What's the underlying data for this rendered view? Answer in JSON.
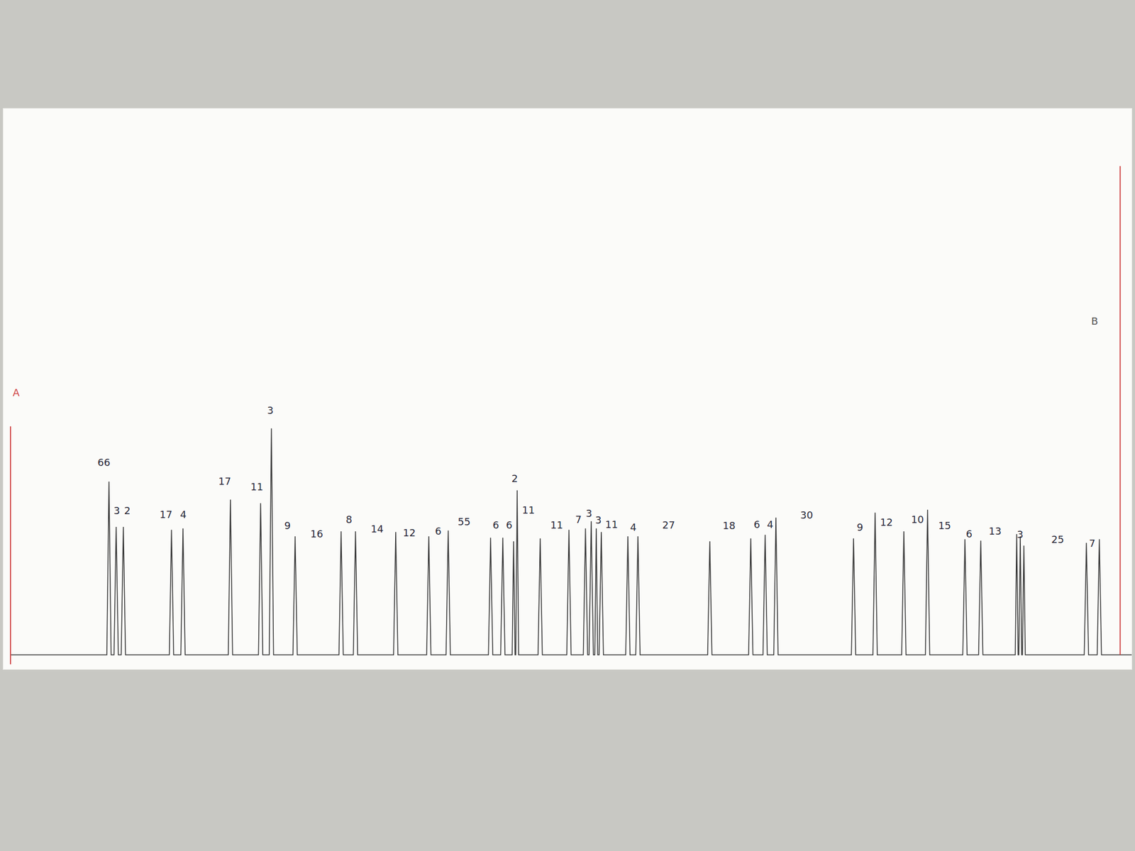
{
  "chart_data": {
    "type": "line",
    "color": "#3a3a3a",
    "x": [
      1.0,
      14.4,
      14.7,
      15.0,
      15.4,
      15.7,
      16.0,
      16.4,
      16.7,
      17.0,
      23.1,
      23.4,
      23.7,
      24.7,
      25.0,
      25.3,
      31.3,
      31.6,
      31.9,
      35.5,
      35.8,
      36.1,
      37.0,
      37.3,
      37.6,
      40.3,
      40.6,
      40.9,
      46.7,
      47.0,
      47.3,
      48.7,
      49.0,
      49.3,
      54.3,
      54.6,
      54.9,
      58.9,
      59.2,
      59.5,
      61.6,
      61.9,
      62.2,
      67.5,
      67.8,
      68.1,
      69.2,
      69.5,
      69.8,
      70.8,
      71.0,
      71.2,
      71.3,
      71.5,
      71.7,
      74.4,
      74.7,
      75.0,
      78.4,
      78.7,
      79.0,
      80.7,
      81.0,
      81.3,
      81.5,
      81.8,
      82.1,
      82.3,
      82.5,
      82.7,
      82.9,
      83.2,
      83.5,
      86.6,
      86.9,
      87.2,
      88.0,
      88.3,
      88.6,
      98.0,
      98.3,
      98.6,
      103.7,
      104.0,
      104.3,
      105.7,
      106.0,
      106.3,
      107.2,
      107.5,
      107.8,
      118.0,
      118.3,
      118.6,
      121.0,
      121.3,
      121.6,
      125.0,
      125.3,
      125.6,
      128.3,
      128.6,
      128.9,
      133.5,
      133.8,
      134.1,
      135.7,
      136.0,
      136.3,
      140.8,
      141.0,
      141.2,
      141.3,
      141.5,
      141.7,
      141.8,
      142.0,
      142.2,
      150.4,
      150.7,
      151.0,
      152.2,
      152.5,
      152.8,
      157.0
    ],
    "values": [
      0,
      0,
      24.1,
      0,
      0,
      17.8,
      0,
      0,
      17.8,
      0,
      0,
      17.4,
      0,
      0,
      17.6,
      0,
      0,
      21.6,
      0,
      0,
      21.1,
      0,
      0,
      31.5,
      0,
      0,
      16.5,
      0,
      0,
      17.2,
      0,
      0,
      17.2,
      0,
      0,
      17.1,
      0,
      0,
      16.5,
      0,
      0,
      17.3,
      0,
      0,
      16.3,
      0,
      0,
      16.3,
      0,
      0,
      15.8,
      0,
      0,
      22.9,
      0,
      0,
      16.2,
      0,
      0,
      17.4,
      0,
      0,
      17.6,
      0,
      0,
      18.6,
      0,
      0,
      17.6,
      0,
      0,
      17.1,
      0,
      0,
      16.5,
      0,
      0,
      16.5,
      0,
      0,
      15.8,
      0,
      0,
      16.2,
      0,
      0,
      16.7,
      0,
      0,
      19.1,
      0,
      0,
      16.2,
      0,
      0,
      19.8,
      0,
      0,
      17.2,
      0,
      0,
      20.2,
      0,
      0,
      16.1,
      0,
      0,
      15.9,
      0,
      0,
      16.8,
      0,
      0,
      16.5,
      0,
      0,
      15.2,
      0,
      0,
      15.6,
      0,
      0,
      16.1,
      0,
      0
    ],
    "xlim": [
      0,
      157
    ],
    "ylim": [
      -2,
      76
    ],
    "xticks": [],
    "yticks": [],
    "grid": false,
    "tick_labels": false,
    "boundaries": [
      {
        "x": 1.0,
        "y": [
          -1.3,
          31.8
        ],
        "color": "#d04848"
      },
      {
        "x": 155.4,
        "y": [
          0,
          68
        ],
        "color": "#d04848"
      }
    ],
    "annotations": [
      {
        "text": "A",
        "x": 1.8,
        "y": 35.5,
        "color": "#d04848"
      },
      {
        "text": "B",
        "x": 151.8,
        "y": 45.5,
        "color": "#555555"
      },
      {
        "text": "66",
        "x": 14.0,
        "y": 25.8
      },
      {
        "text": "3",
        "x": 15.8,
        "y": 19.1
      },
      {
        "text": "2",
        "x": 17.2,
        "y": 19.1
      },
      {
        "text": "17",
        "x": 22.6,
        "y": 18.6
      },
      {
        "text": "4",
        "x": 25.0,
        "y": 18.6
      },
      {
        "text": "17",
        "x": 30.8,
        "y": 23.2
      },
      {
        "text": "11",
        "x": 35.3,
        "y": 22.4
      },
      {
        "text": "3",
        "x": 37.1,
        "y": 33.1
      },
      {
        "text": "9",
        "x": 39.5,
        "y": 17.0
      },
      {
        "text": "16",
        "x": 43.6,
        "y": 15.9
      },
      {
        "text": "8",
        "x": 48.1,
        "y": 17.9
      },
      {
        "text": "14",
        "x": 52.0,
        "y": 16.6
      },
      {
        "text": "12",
        "x": 56.5,
        "y": 16.0
      },
      {
        "text": "6",
        "x": 60.5,
        "y": 16.3
      },
      {
        "text": "55",
        "x": 64.1,
        "y": 17.6
      },
      {
        "text": "6",
        "x": 68.5,
        "y": 17.1
      },
      {
        "text": "6",
        "x": 70.4,
        "y": 17.1
      },
      {
        "text": "2",
        "x": 71.1,
        "y": 23.6
      },
      {
        "text": "11",
        "x": 73.1,
        "y": 19.2
      },
      {
        "text": "11",
        "x": 77.0,
        "y": 17.1
      },
      {
        "text": "7",
        "x": 80.0,
        "y": 17.9
      },
      {
        "text": "3",
        "x": 81.5,
        "y": 18.7
      },
      {
        "text": "3",
        "x": 82.8,
        "y": 17.8
      },
      {
        "text": "11",
        "x": 84.6,
        "y": 17.2
      },
      {
        "text": "4",
        "x": 87.6,
        "y": 16.8
      },
      {
        "text": "27",
        "x": 92.6,
        "y": 17.1
      },
      {
        "text": "18",
        "x": 101.0,
        "y": 17.0
      },
      {
        "text": "6",
        "x": 104.8,
        "y": 17.2
      },
      {
        "text": "4",
        "x": 106.7,
        "y": 17.2
      },
      {
        "text": "30",
        "x": 111.8,
        "y": 18.5
      },
      {
        "text": "9",
        "x": 119.2,
        "y": 16.8
      },
      {
        "text": "12",
        "x": 122.9,
        "y": 17.5
      },
      {
        "text": "10",
        "x": 127.2,
        "y": 17.9
      },
      {
        "text": "15",
        "x": 131.0,
        "y": 17.0
      },
      {
        "text": "6",
        "x": 134.4,
        "y": 15.9
      },
      {
        "text": "13",
        "x": 138.0,
        "y": 16.3
      },
      {
        "text": "3",
        "x": 141.5,
        "y": 15.8
      },
      {
        "text": "25",
        "x": 146.7,
        "y": 15.1
      },
      {
        "text": "7",
        "x": 151.5,
        "y": 14.6
      }
    ]
  }
}
